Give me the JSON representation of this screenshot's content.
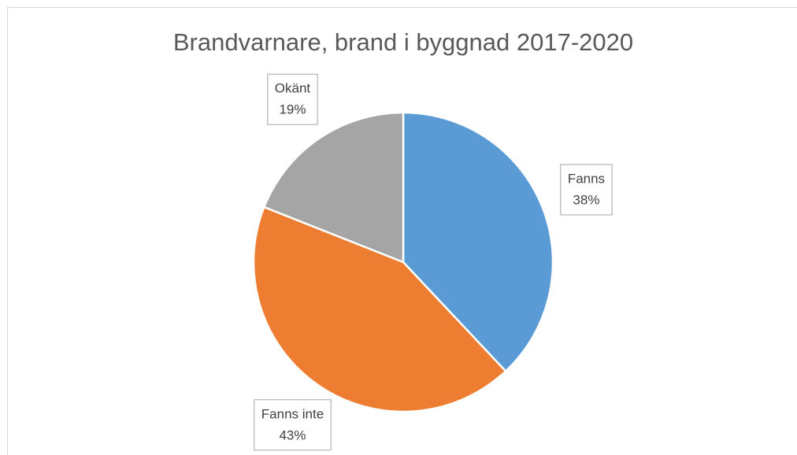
{
  "chart_data": {
    "type": "pie",
    "title": "Brandvarnare, brand i byggnad 2017-2020",
    "categories": [
      "Fanns",
      "Fanns inte",
      "Okänt"
    ],
    "values": [
      38,
      43,
      19
    ],
    "value_labels": [
      "38%",
      "43%",
      "19%"
    ],
    "colors": [
      "#5b9bd5",
      "#ed7d31",
      "#a5a5a5"
    ]
  }
}
